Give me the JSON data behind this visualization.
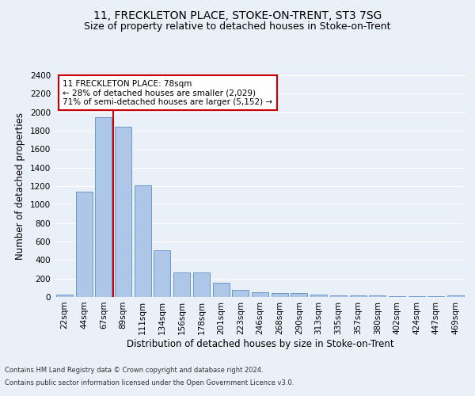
{
  "title": "11, FRECKLETON PLACE, STOKE-ON-TRENT, ST3 7SG",
  "subtitle": "Size of property relative to detached houses in Stoke-on-Trent",
  "xlabel": "Distribution of detached houses by size in Stoke-on-Trent",
  "ylabel": "Number of detached properties",
  "bar_labels": [
    "22sqm",
    "44sqm",
    "67sqm",
    "89sqm",
    "111sqm",
    "134sqm",
    "156sqm",
    "178sqm",
    "201sqm",
    "223sqm",
    "246sqm",
    "268sqm",
    "290sqm",
    "313sqm",
    "335sqm",
    "357sqm",
    "380sqm",
    "402sqm",
    "424sqm",
    "447sqm",
    "469sqm"
  ],
  "bar_values": [
    30,
    1140,
    1950,
    1840,
    1210,
    510,
    270,
    270,
    155,
    80,
    50,
    45,
    40,
    25,
    18,
    15,
    18,
    5,
    5,
    5,
    18
  ],
  "bar_color": "#aec6e8",
  "bar_edge_color": "#5a8fc0",
  "annotation_title": "11 FRECKLETON PLACE: 78sqm",
  "annotation_line1": "← 28% of detached houses are smaller (2,029)",
  "annotation_line2": "71% of semi-detached houses are larger (5,152) →",
  "vline_color": "#cc0000",
  "annotation_box_color": "#cc0000",
  "footnote1": "Contains HM Land Registry data © Crown copyright and database right 2024.",
  "footnote2": "Contains public sector information licensed under the Open Government Licence v3.0.",
  "ylim": [
    0,
    2400
  ],
  "yticks": [
    0,
    200,
    400,
    600,
    800,
    1000,
    1200,
    1400,
    1600,
    1800,
    2000,
    2200,
    2400
  ],
  "bg_color": "#eaf0f8",
  "plot_bg_color": "#eaf0f8",
  "grid_color": "#ffffff",
  "title_fontsize": 10,
  "subtitle_fontsize": 9,
  "axis_label_fontsize": 8.5,
  "tick_fontsize": 7.5,
  "annotation_fontsize": 7.5,
  "footnote_fontsize": 6,
  "vline_x": 2.5
}
